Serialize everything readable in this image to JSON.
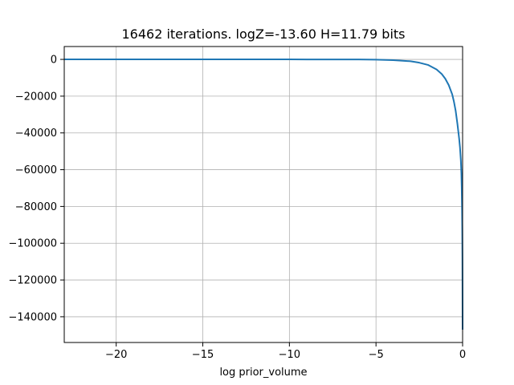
{
  "chart_data": {
    "type": "line",
    "title": "16462 iterations. logZ=-13.60 H=11.79 bits",
    "xlabel": "log prior_volume",
    "ylabel": "",
    "xlim": [
      -23,
      0
    ],
    "ylim": [
      -154000,
      7000
    ],
    "grid": true,
    "xticks": [
      -20,
      -15,
      -10,
      -5,
      0
    ],
    "xtick_labels": [
      "−20",
      "−15",
      "−10",
      "−5",
      "0"
    ],
    "yticks": [
      0,
      -20000,
      -40000,
      -60000,
      -80000,
      -100000,
      -120000,
      -140000
    ],
    "ytick_labels": [
      "0",
      "−20000",
      "−40000",
      "−60000",
      "−80000",
      "−100000",
      "−120000",
      "−140000"
    ],
    "series": [
      {
        "color": "#1f77b4",
        "x": [
          -23,
          -20,
          -15,
          -10,
          -6,
          -5,
          -4,
          -3,
          -2.5,
          -2,
          -1.5,
          -1.2,
          -1.0,
          -0.8,
          -0.6,
          -0.5,
          -0.4,
          -0.3,
          -0.2,
          -0.15,
          -0.1,
          -0.07,
          -0.05,
          -0.03,
          -0.02,
          -0.01,
          -0.005,
          0
        ],
        "y": [
          0,
          0,
          0,
          0,
          -50,
          -150,
          -400,
          -1000,
          -1800,
          -3000,
          -5500,
          -8000,
          -10500,
          -14000,
          -19000,
          -23000,
          -28000,
          -35000,
          -43000,
          -48000,
          -55000,
          -62000,
          -70000,
          -82000,
          -92000,
          -108000,
          -125000,
          -147000
        ]
      }
    ]
  }
}
